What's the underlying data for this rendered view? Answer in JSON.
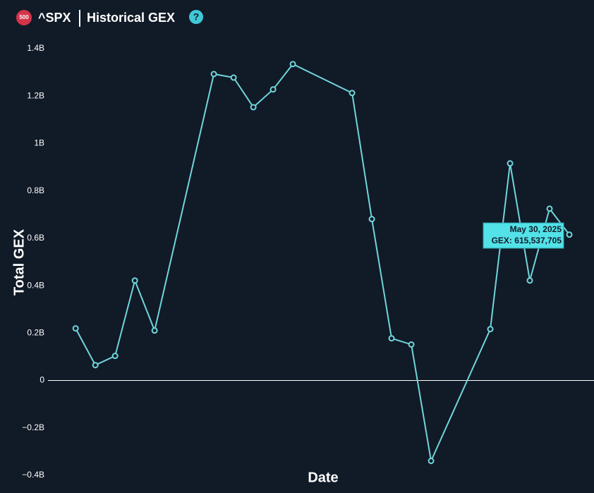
{
  "header": {
    "badge": "500",
    "symbol": "^SPX",
    "title": "Historical GEX",
    "help": "?"
  },
  "chart_data": {
    "type": "line",
    "x_label": "Date",
    "y_label": "Total GEX",
    "color": "#6fd6da",
    "x": [
      0,
      1,
      2,
      3,
      4,
      7,
      8,
      9,
      10,
      11,
      14,
      15,
      16,
      17,
      18,
      21,
      22,
      23,
      24,
      25
    ],
    "values": [
      220000000,
      65000000,
      104000000,
      422000000,
      211000000,
      1293000000,
      1278000000,
      1153000000,
      1228000000,
      1335000000,
      1213000000,
      681000000,
      178000000,
      152000000,
      -339000000,
      217000000,
      916000000,
      422000000,
      725000000,
      615537705
    ],
    "xlim": [
      -1.4,
      26.25
    ],
    "ylim": [
      -400000000,
      1400000000
    ],
    "yticks": [
      {
        "value": -400000000,
        "label": "−0.4B"
      },
      {
        "value": -200000000,
        "label": "−0.2B"
      },
      0,
      {
        "value": 200000000,
        "label": "0.2B"
      },
      {
        "value": 400000000,
        "label": "0.4B"
      },
      {
        "value": 600000000,
        "label": "0.6B"
      },
      {
        "value": 800000000,
        "label": "0.8B"
      },
      {
        "value": 1000000000,
        "label": "1B"
      },
      {
        "value": 1200000000,
        "label": "1.2B"
      },
      {
        "value": 1400000000,
        "label": "1.4B"
      }
    ],
    "tooltip": {
      "date": "May 30, 2025",
      "text": "GEX: 615,537,705"
    }
  }
}
